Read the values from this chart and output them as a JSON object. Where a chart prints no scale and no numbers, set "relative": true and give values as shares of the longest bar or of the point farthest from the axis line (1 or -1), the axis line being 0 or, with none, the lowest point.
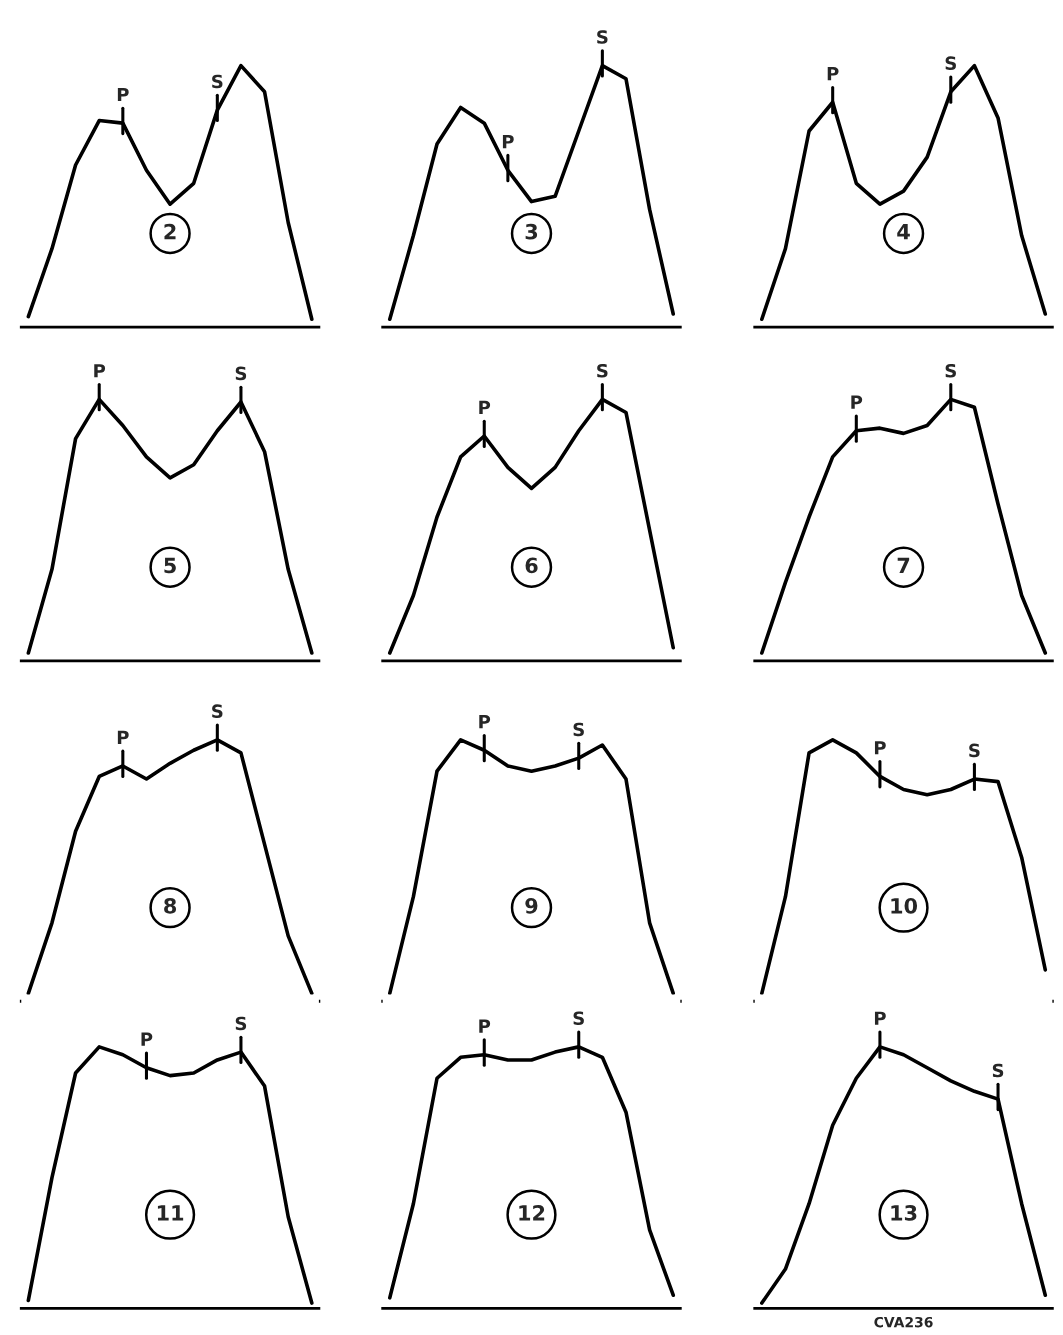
{
  "chart_data": [
    {
      "type": "line",
      "relative": true,
      "title": "2",
      "color": "#000000",
      "annotations": [
        {
          "text": "P",
          "y": 0.78
        },
        {
          "text": "S",
          "y": 0.83
        }
      ],
      "categories": [
        null,
        null,
        null,
        null,
        null,
        null,
        null,
        null,
        null,
        null,
        null,
        null,
        null
      ],
      "values": [
        0.04,
        0.3,
        0.62,
        0.79,
        0.78,
        0.6,
        0.47,
        0.55,
        0.83,
        1.0,
        0.9,
        0.4,
        0.03
      ]
    },
    {
      "type": "line",
      "relative": true,
      "title": "3",
      "color": "#000000",
      "annotations": [
        {
          "text": "P",
          "y": 0.6
        },
        {
          "text": "S",
          "y": 1.0
        }
      ],
      "categories": [
        null,
        null,
        null,
        null,
        null,
        null,
        null,
        null,
        null,
        null,
        null,
        null,
        null
      ],
      "values": [
        0.03,
        0.35,
        0.7,
        0.84,
        0.78,
        0.6,
        0.48,
        0.5,
        0.75,
        1.0,
        0.95,
        0.45,
        0.05
      ]
    },
    {
      "type": "line",
      "relative": true,
      "title": "4",
      "color": "#000000",
      "annotations": [
        {
          "text": "P",
          "y": 0.86
        },
        {
          "text": "S",
          "y": 0.9
        }
      ],
      "categories": [
        null,
        null,
        null,
        null,
        null,
        null,
        null,
        null,
        null,
        null,
        null,
        null,
        null
      ],
      "values": [
        0.03,
        0.3,
        0.75,
        0.86,
        0.55,
        0.47,
        0.52,
        0.65,
        0.9,
        1.0,
        0.8,
        0.35,
        0.05
      ]
    },
    {
      "type": "line",
      "relative": true,
      "title": "5",
      "color": "#000000",
      "annotations": [
        {
          "text": "P",
          "y": 1.0
        },
        {
          "text": "S",
          "y": 0.99
        }
      ],
      "categories": [
        null,
        null,
        null,
        null,
        null,
        null,
        null,
        null,
        null,
        null,
        null,
        null,
        null
      ],
      "values": [
        0.03,
        0.35,
        0.85,
        1.0,
        0.9,
        0.78,
        0.7,
        0.75,
        0.88,
        0.99,
        0.8,
        0.35,
        0.03
      ]
    },
    {
      "type": "line",
      "relative": true,
      "title": "6",
      "color": "#000000",
      "annotations": [
        {
          "text": "P",
          "y": 0.86
        },
        {
          "text": "S",
          "y": 1.0
        }
      ],
      "categories": [
        null,
        null,
        null,
        null,
        null,
        null,
        null,
        null,
        null,
        null,
        null,
        null,
        null
      ],
      "values": [
        0.03,
        0.25,
        0.55,
        0.78,
        0.86,
        0.74,
        0.66,
        0.74,
        0.88,
        1.0,
        0.95,
        0.5,
        0.05
      ]
    },
    {
      "type": "line",
      "relative": true,
      "title": "7",
      "color": "#000000",
      "annotations": [
        {
          "text": "P",
          "y": 0.88
        },
        {
          "text": "S",
          "y": 1.0
        }
      ],
      "categories": [
        null,
        null,
        null,
        null,
        null,
        null,
        null,
        null,
        null,
        null,
        null,
        null,
        null
      ],
      "values": [
        0.03,
        0.3,
        0.55,
        0.78,
        0.88,
        0.89,
        0.87,
        0.9,
        1.0,
        0.97,
        0.6,
        0.25,
        0.03
      ]
    },
    {
      "type": "line",
      "relative": true,
      "title": "8",
      "color": "#000000",
      "annotations": [
        {
          "text": "P",
          "y": 0.9
        },
        {
          "text": "S",
          "y": 1.0
        }
      ],
      "categories": [
        null,
        null,
        null,
        null,
        null,
        null,
        null,
        null,
        null,
        null,
        null,
        null,
        null
      ],
      "values": [
        0.03,
        0.3,
        0.65,
        0.86,
        0.9,
        0.85,
        0.91,
        0.96,
        1.0,
        0.95,
        0.6,
        0.25,
        0.03
      ]
    },
    {
      "type": "line",
      "relative": true,
      "title": "9",
      "color": "#000000",
      "annotations": [
        {
          "text": "P",
          "y": 0.96
        },
        {
          "text": "S",
          "y": 0.93
        }
      ],
      "categories": [
        null,
        null,
        null,
        null,
        null,
        null,
        null,
        null,
        null,
        null,
        null,
        null,
        null
      ],
      "values": [
        0.03,
        0.4,
        0.88,
        1.0,
        0.96,
        0.9,
        0.88,
        0.9,
        0.93,
        0.98,
        0.85,
        0.3,
        0.03
      ]
    },
    {
      "type": "line",
      "relative": true,
      "title": "10",
      "color": "#000000",
      "annotations": [
        {
          "text": "P",
          "y": 0.86
        },
        {
          "text": "S",
          "y": 0.85
        }
      ],
      "categories": [
        null,
        null,
        null,
        null,
        null,
        null,
        null,
        null,
        null,
        null,
        null,
        null,
        null
      ],
      "values": [
        0.03,
        0.4,
        0.95,
        1.0,
        0.95,
        0.86,
        0.81,
        0.79,
        0.81,
        0.85,
        0.84,
        0.55,
        0.12
      ]
    },
    {
      "type": "line",
      "relative": true,
      "title": "11",
      "color": "#000000",
      "annotations": [
        {
          "text": "P",
          "y": 0.92
        },
        {
          "text": "S",
          "y": 0.98
        }
      ],
      "categories": [
        null,
        null,
        null,
        null,
        null,
        null,
        null,
        null,
        null,
        null,
        null,
        null,
        null
      ],
      "values": [
        0.03,
        0.5,
        0.9,
        1.0,
        0.97,
        0.92,
        0.89,
        0.9,
        0.95,
        0.98,
        0.85,
        0.35,
        0.02
      ]
    },
    {
      "type": "line",
      "relative": true,
      "title": "12",
      "color": "#000000",
      "annotations": [
        {
          "text": "P",
          "y": 0.97
        },
        {
          "text": "S",
          "y": 1.0
        }
      ],
      "categories": [
        null,
        null,
        null,
        null,
        null,
        null,
        null,
        null,
        null,
        null,
        null,
        null,
        null
      ],
      "values": [
        0.04,
        0.4,
        0.88,
        0.96,
        0.97,
        0.95,
        0.95,
        0.98,
        1.0,
        0.96,
        0.75,
        0.3,
        0.05
      ]
    },
    {
      "type": "line",
      "relative": true,
      "title": "13",
      "color": "#000000",
      "annotations": [
        {
          "text": "P",
          "y": 1.0
        },
        {
          "text": "S",
          "y": 0.8
        },
        "CVA236"
      ],
      "categories": [
        null,
        null,
        null,
        null,
        null,
        null,
        null,
        null,
        null,
        null,
        null,
        null,
        null
      ],
      "values": [
        0.02,
        0.15,
        0.4,
        0.7,
        0.88,
        1.0,
        0.97,
        0.92,
        0.87,
        0.83,
        0.8,
        0.4,
        0.05
      ]
    }
  ]
}
